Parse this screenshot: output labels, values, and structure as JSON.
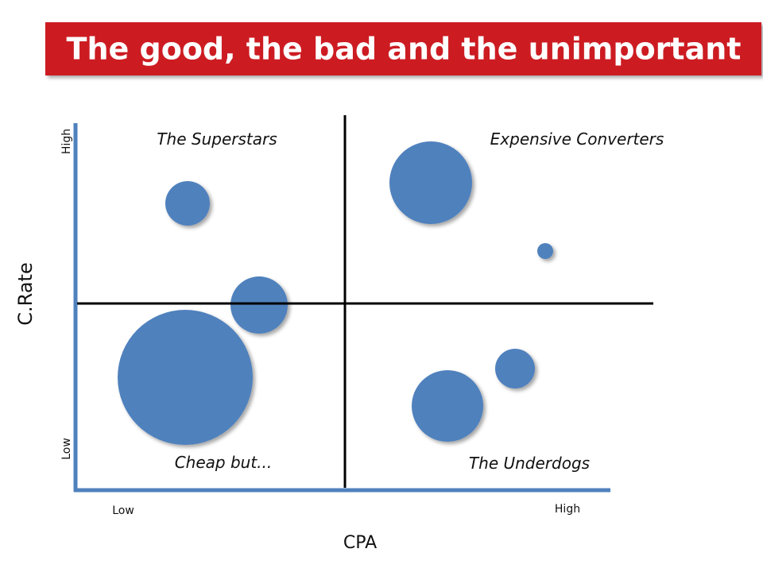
{
  "title": "The good, the bad and the unimportant",
  "quadrants": {
    "top_left": "The Superstars",
    "top_right": "Expensive Converters",
    "bottom_left": "Cheap but...",
    "bottom_right": "The Underdogs"
  },
  "y_axis": {
    "label": "C.Rate",
    "low": "Low",
    "high": "High"
  },
  "x_axis": {
    "label": "CPA",
    "low": "Low",
    "high": "High"
  }
}
